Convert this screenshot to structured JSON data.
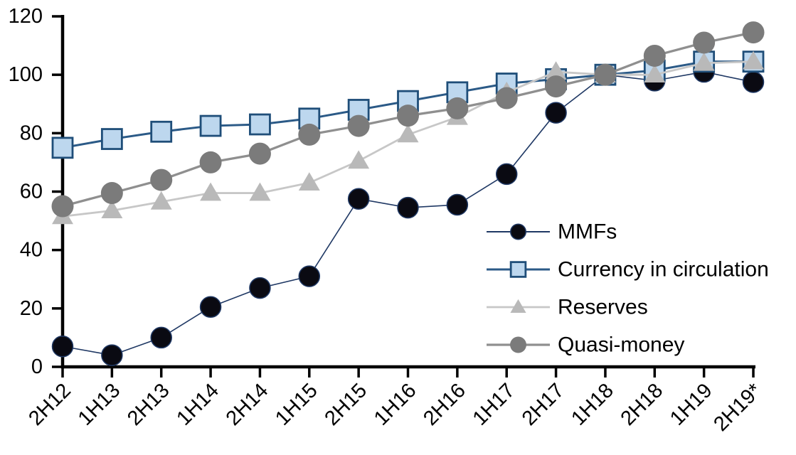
{
  "chart_data": {
    "type": "line",
    "title": "",
    "xlabel": "",
    "ylabel": "",
    "categories": [
      "2H12",
      "1H13",
      "2H13",
      "1H14",
      "2H14",
      "1H15",
      "2H15",
      "1H16",
      "2H16",
      "1H17",
      "2H17",
      "1H18",
      "2H18",
      "1H19",
      "2H19*"
    ],
    "series": [
      {
        "name": "MMFs",
        "marker": "circle",
        "values": [
          7,
          4,
          10,
          20.5,
          27,
          31,
          57.5,
          54.5,
          55.5,
          66,
          87,
          100,
          98,
          101,
          97.5
        ],
        "line_color": "#1f3864",
        "line_width": 1.6,
        "marker_fill": "#0a0a12",
        "marker_edge": "#1f3864",
        "marker_edge_width": 1.5,
        "marker_size": 29
      },
      {
        "name": "Currency in circulation",
        "marker": "square",
        "values": [
          75,
          78,
          80.5,
          82.5,
          83,
          85,
          88,
          91,
          94,
          97,
          98.5,
          100,
          101.5,
          104.5,
          104.5
        ],
        "line_color": "#2b5a87",
        "line_width": 3,
        "marker_fill": "#bdd7ee",
        "marker_edge": "#1f4e79",
        "marker_edge_width": 2.8,
        "marker_size": 28
      },
      {
        "name": "Reserves",
        "marker": "triangle",
        "values": [
          51.5,
          53.5,
          56.5,
          59.5,
          59.5,
          63,
          70.5,
          79.5,
          85.5,
          94,
          101,
          100,
          100,
          104,
          104.5
        ],
        "line_color": "#c7c7c7",
        "line_width": 2.8,
        "marker_fill": "#b9b9b9",
        "marker_edge": "#b9b9b9",
        "marker_edge_width": 0,
        "marker_size": 30
      },
      {
        "name": "Quasi-money",
        "marker": "circle",
        "values": [
          55,
          59.5,
          64,
          70,
          73,
          79.5,
          82.5,
          86,
          88.5,
          92,
          96,
          100,
          106.5,
          111,
          114.5
        ],
        "line_color": "#8f8f8f",
        "line_width": 3.3,
        "marker_fill": "#7b7b7b",
        "marker_edge": "#7b7b7b",
        "marker_edge_width": 0,
        "marker_size": 31
      }
    ],
    "ylim": [
      0,
      120
    ],
    "yticks": [
      0,
      20,
      40,
      60,
      80,
      100,
      120
    ],
    "grid": false,
    "legend_position": "inside-right",
    "legend_entries": [
      "MMFs",
      "Currency in circulation",
      "Reserves",
      "Quasi-money"
    ],
    "axis_color": "#000000",
    "background_color": "#ffffff",
    "index_note": "all series equal 100 at 1H18"
  }
}
